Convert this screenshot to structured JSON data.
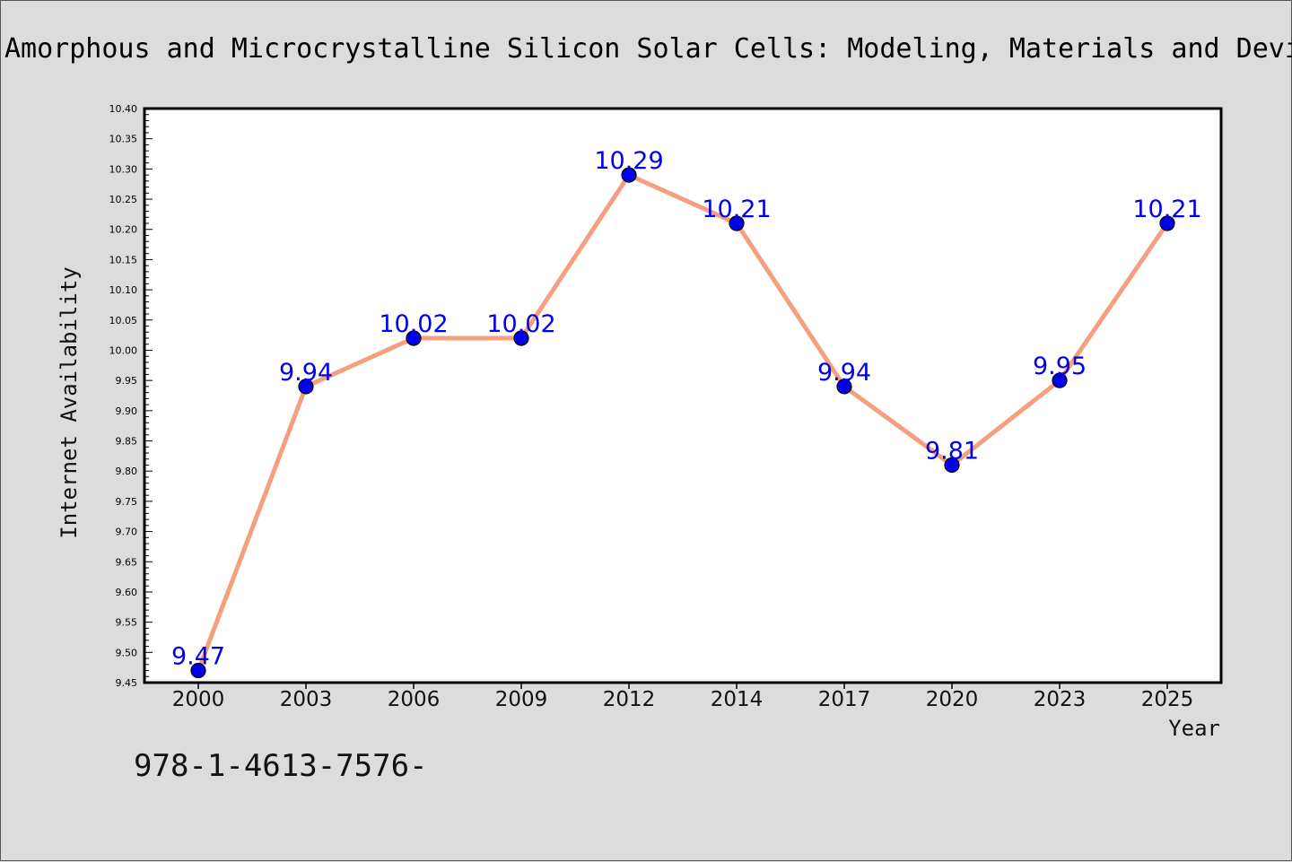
{
  "chart_data": {
    "type": "line",
    "title": "Amorphous and Microcrystalline Silicon Solar Cells: Modeling, Materials and Devi",
    "xlabel": "Year",
    "ylabel": "Internet Availability",
    "categories": [
      "2000",
      "2003",
      "2006",
      "2009",
      "2012",
      "2014",
      "2017",
      "2020",
      "2023",
      "2025"
    ],
    "values": [
      9.47,
      9.94,
      10.02,
      10.02,
      10.29,
      10.21,
      9.94,
      9.81,
      9.95,
      10.21
    ],
    "data_labels": [
      "9.47",
      "9.94",
      "10.02",
      "10.02",
      "10.29",
      "10.21",
      "9.94",
      "9.81",
      "9.95",
      "10.21"
    ],
    "ylim": [
      9.45,
      10.4
    ],
    "yticks": [
      "9.45",
      "9.50",
      "9.55",
      "9.60",
      "9.65",
      "9.70",
      "9.75",
      "9.80",
      "9.85",
      "9.90",
      "9.95",
      "10.00",
      "10.05",
      "10.10",
      "10.15",
      "10.20",
      "10.25",
      "10.30",
      "10.35",
      "10.40"
    ],
    "grid": false,
    "line_color": "#f4a07f",
    "marker_color": "#0000ee",
    "label_color": "#0000ee"
  },
  "annotation": {
    "isbn": "978-1-4613-7576-"
  }
}
